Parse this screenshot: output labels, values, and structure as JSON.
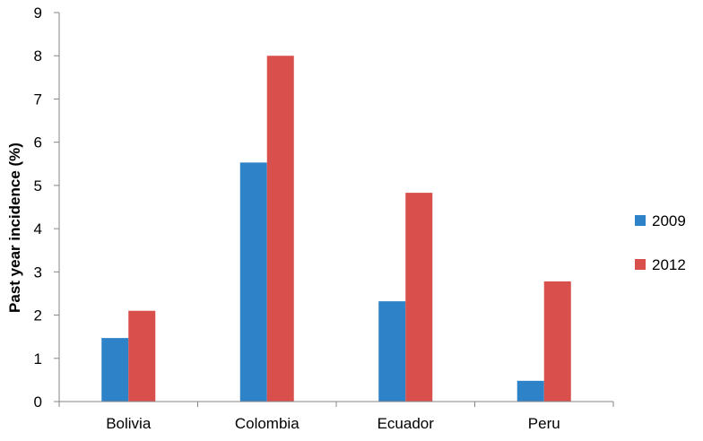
{
  "chart_data": {
    "type": "bar",
    "ylabel": "Past year incidence (%)",
    "xlabel": "",
    "categories": [
      "Bolivia",
      "Colombia",
      "Ecuador",
      "Peru"
    ],
    "ylim": [
      0,
      9
    ],
    "yticks": [
      0,
      1,
      2,
      3,
      4,
      5,
      6,
      7,
      8,
      9
    ],
    "grid": false,
    "legend_position": "right",
    "series": [
      {
        "name": "2009",
        "color": "#2e82c8",
        "values": [
          1.47,
          5.53,
          2.32,
          0.48
        ]
      },
      {
        "name": "2012",
        "color": "#d94f4c",
        "values": [
          2.1,
          8.0,
          4.83,
          2.78
        ]
      }
    ]
  }
}
